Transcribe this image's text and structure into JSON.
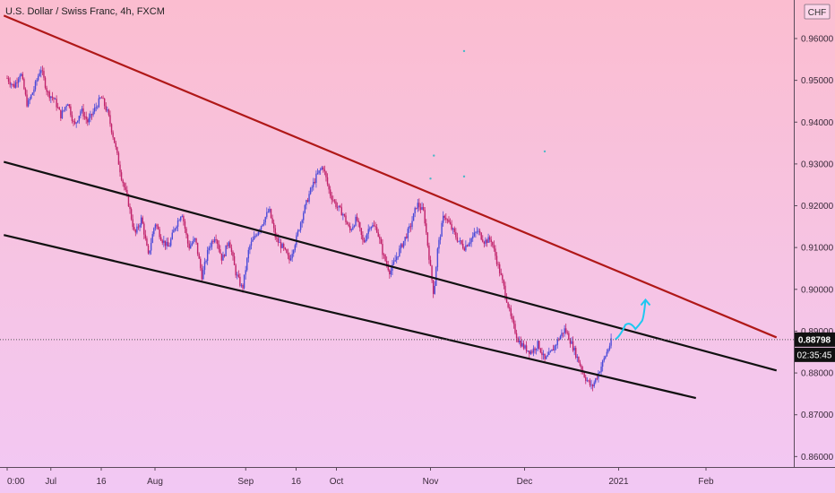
{
  "chart_data": {
    "type": "candlestick",
    "title": "U.S. Dollar / Swiss Franc, 4h, FXCM",
    "currency": "CHF",
    "price_tag": "0.88798",
    "countdown": "02:35:45",
    "x_ticks": [
      "0:00",
      "Jul",
      "16",
      "Aug",
      "Sep",
      "16",
      "Oct",
      "Nov",
      "Dec",
      "2021",
      "Feb"
    ],
    "x_tick_positions": [
      0,
      13,
      28,
      44,
      71,
      86,
      98,
      126,
      154,
      182,
      208
    ],
    "y_ticks": [
      "0.86000",
      "0.87000",
      "0.88000",
      "0.89000",
      "0.90000",
      "0.91000",
      "0.92000",
      "0.93000",
      "0.94000",
      "0.95000",
      "0.96000"
    ],
    "ylim": [
      0.8575,
      0.9645
    ],
    "xlim": [
      0,
      229
    ],
    "last_price": 0.88798,
    "close_path": [
      [
        0,
        0.9505
      ],
      [
        2,
        0.9485
      ],
      [
        4,
        0.952
      ],
      [
        6,
        0.944
      ],
      [
        8,
        0.948
      ],
      [
        10,
        0.953
      ],
      [
        12,
        0.947
      ],
      [
        14,
        0.9455
      ],
      [
        16,
        0.9415
      ],
      [
        18,
        0.945
      ],
      [
        20,
        0.939
      ],
      [
        22,
        0.943
      ],
      [
        24,
        0.94
      ],
      [
        26,
        0.943
      ],
      [
        28,
        0.946
      ],
      [
        30,
        0.942
      ],
      [
        32,
        0.935
      ],
      [
        34,
        0.927
      ],
      [
        36,
        0.921
      ],
      [
        38,
        0.913
      ],
      [
        40,
        0.917
      ],
      [
        42,
        0.908
      ],
      [
        44,
        0.916
      ],
      [
        46,
        0.912
      ],
      [
        48,
        0.91
      ],
      [
        50,
        0.915
      ],
      [
        52,
        0.9185
      ],
      [
        54,
        0.91
      ],
      [
        56,
        0.912
      ],
      [
        58,
        0.903
      ],
      [
        60,
        0.91
      ],
      [
        62,
        0.913
      ],
      [
        64,
        0.907
      ],
      [
        66,
        0.912
      ],
      [
        68,
        0.904
      ],
      [
        70,
        0.9
      ],
      [
        72,
        0.91
      ],
      [
        74,
        0.913
      ],
      [
        76,
        0.916
      ],
      [
        78,
        0.919
      ],
      [
        80,
        0.912
      ],
      [
        82,
        0.91
      ],
      [
        84,
        0.907
      ],
      [
        86,
        0.912
      ],
      [
        88,
        0.918
      ],
      [
        90,
        0.923
      ],
      [
        92,
        0.927
      ],
      [
        94,
        0.9295
      ],
      [
        96,
        0.923
      ],
      [
        98,
        0.92
      ],
      [
        100,
        0.918
      ],
      [
        102,
        0.914
      ],
      [
        104,
        0.917
      ],
      [
        106,
        0.911
      ],
      [
        108,
        0.9155
      ],
      [
        110,
        0.9145
      ],
      [
        112,
        0.908
      ],
      [
        114,
        0.904
      ],
      [
        116,
        0.908
      ],
      [
        118,
        0.9115
      ],
      [
        120,
        0.915
      ],
      [
        122,
        0.9205
      ],
      [
        124,
        0.9185
      ],
      [
        126,
        0.905
      ],
      [
        127,
        0.8985
      ],
      [
        128,
        0.909
      ],
      [
        130,
        0.918
      ],
      [
        132,
        0.915
      ],
      [
        134,
        0.912
      ],
      [
        136,
        0.91
      ],
      [
        138,
        0.912
      ],
      [
        140,
        0.914
      ],
      [
        142,
        0.9115
      ],
      [
        144,
        0.912
      ],
      [
        146,
        0.906
      ],
      [
        148,
        0.9
      ],
      [
        150,
        0.893
      ],
      [
        152,
        0.888
      ],
      [
        154,
        0.886
      ],
      [
        156,
        0.885
      ],
      [
        158,
        0.887
      ],
      [
        160,
        0.883
      ],
      [
        162,
        0.885
      ],
      [
        164,
        0.888
      ],
      [
        166,
        0.8905
      ],
      [
        168,
        0.887
      ],
      [
        170,
        0.883
      ],
      [
        172,
        0.879
      ],
      [
        174,
        0.8765
      ],
      [
        176,
        0.88
      ],
      [
        178,
        0.884
      ],
      [
        180,
        0.888
      ]
    ],
    "trendlines": [
      {
        "name": "upper-resistance",
        "color": "#b01818",
        "points": [
          [
            -1,
            0.9655
          ],
          [
            229,
            0.8885
          ]
        ]
      },
      {
        "name": "middle-line",
        "color": "#111111",
        "points": [
          [
            -1,
            0.9305
          ],
          [
            229,
            0.8806
          ]
        ]
      },
      {
        "name": "lower-line",
        "color": "#111111",
        "points": [
          [
            -1,
            0.913
          ],
          [
            205,
            0.874
          ]
        ]
      }
    ],
    "projection": {
      "color": "#1ec8f0",
      "points": [
        [
          181,
          0.888
        ],
        [
          184,
          0.8915
        ],
        [
          187,
          0.8905
        ],
        [
          189,
          0.8925
        ],
        [
          190,
          0.8975
        ]
      ]
    },
    "scattered_dots": [
      [
        136,
        0.957
      ],
      [
        127,
        0.932
      ],
      [
        160,
        0.933
      ],
      [
        126,
        0.9265
      ],
      [
        136,
        0.927
      ]
    ]
  }
}
